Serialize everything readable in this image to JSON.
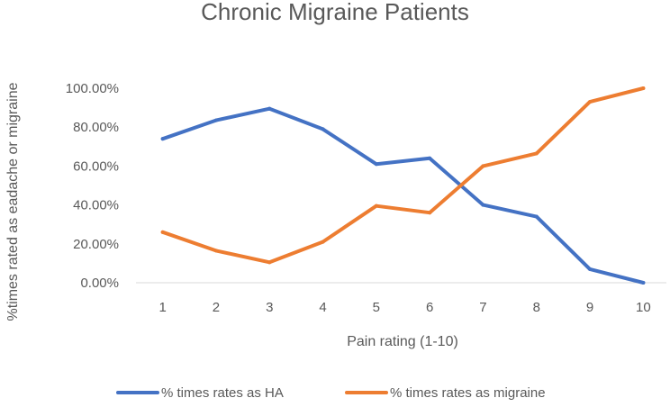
{
  "chart_data": {
    "type": "line",
    "title": "Chronic Migraine Patients",
    "xlabel": "Pain rating (1-10)",
    "ylabel": "%times rated as eadache or migraine",
    "categories": [
      "1",
      "2",
      "3",
      "4",
      "5",
      "6",
      "7",
      "8",
      "9",
      "10"
    ],
    "ylim": [
      0,
      100
    ],
    "yticks": [
      0,
      20,
      40,
      60,
      80,
      100
    ],
    "ytick_labels": [
      "0.00%",
      "20.00%",
      "40.00%",
      "60.00%",
      "80.00%",
      "100.00%"
    ],
    "grid": false,
    "legend_position": "bottom",
    "series": [
      {
        "name": "% times rates as HA",
        "color": "#4472C4",
        "values": [
          74,
          83.5,
          89.5,
          79,
          61,
          64,
          40,
          34,
          7,
          0
        ]
      },
      {
        "name": "% times rates as migraine",
        "color": "#ED7D31",
        "values": [
          26,
          16.5,
          10.5,
          21,
          39.5,
          36,
          60,
          66.5,
          93,
          100
        ]
      }
    ]
  }
}
